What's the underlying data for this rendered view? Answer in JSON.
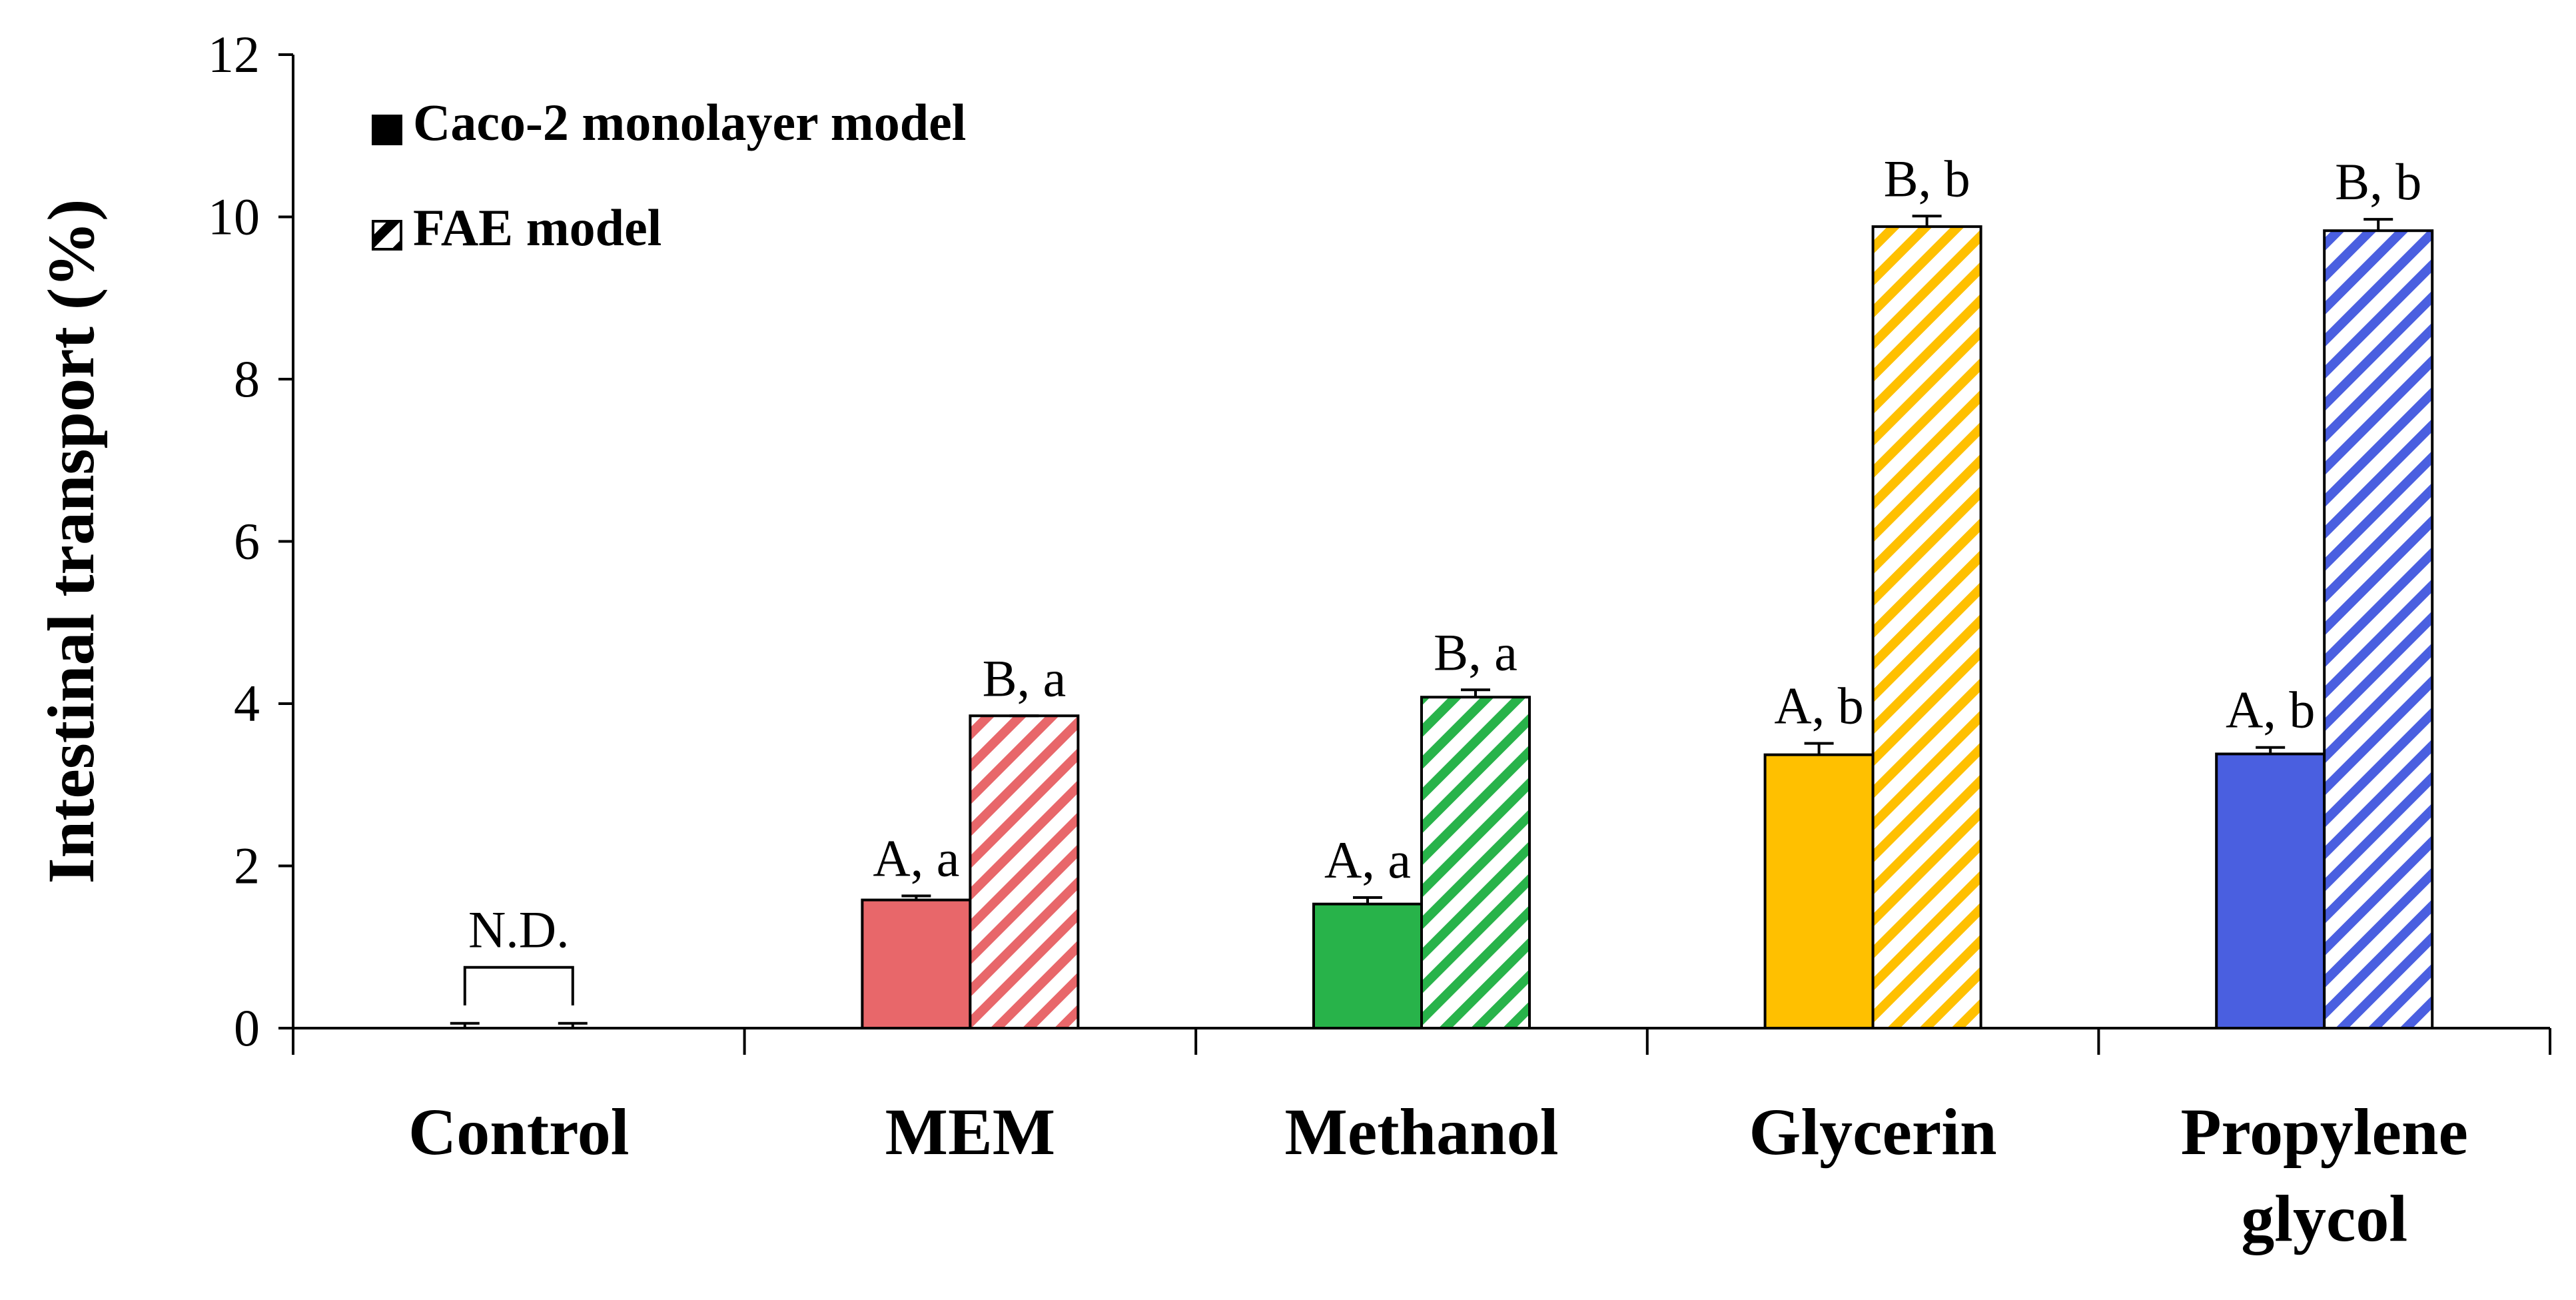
{
  "chart_data": {
    "type": "bar",
    "ylabel": "Intestinal transport (%)",
    "ylim": [
      0,
      12
    ],
    "yticks": [
      "0",
      "2",
      "4",
      "6",
      "8",
      "10",
      "12"
    ],
    "categories": [
      [
        "Control"
      ],
      [
        "MEM"
      ],
      [
        "Methanol"
      ],
      [
        "Glycerin"
      ],
      [
        "Propylene",
        "glycol"
      ]
    ],
    "series": [
      {
        "name": "Caco-2 monolayer model",
        "pattern": "solid",
        "values": [
          0,
          1.58,
          1.53,
          3.37,
          3.38
        ],
        "errors": [
          0.06,
          0.05,
          0.08,
          0.14,
          0.08
        ],
        "labels": [
          "",
          "A, a",
          "A, a",
          "A, b",
          "A, b"
        ],
        "colors": [
          "#ffffff",
          "#E8676A",
          "#28B34A",
          "#FFC000",
          "#4A5FE0"
        ]
      },
      {
        "name": "FAE model",
        "pattern": "hatched",
        "values": [
          0,
          3.85,
          4.08,
          9.88,
          9.83
        ],
        "errors": [
          0.06,
          0.0,
          0.09,
          0.13,
          0.14
        ],
        "labels": [
          "",
          "B, a",
          "B, a",
          "B, b",
          "B, b"
        ],
        "colors": [
          "#ffffff",
          "#E8676A",
          "#28B34A",
          "#FFC000",
          "#4A5FE0"
        ]
      }
    ],
    "annotations": [
      {
        "category": "Control",
        "text": "N.D."
      }
    ],
    "legend_position": "top-left",
    "grid": false
  }
}
